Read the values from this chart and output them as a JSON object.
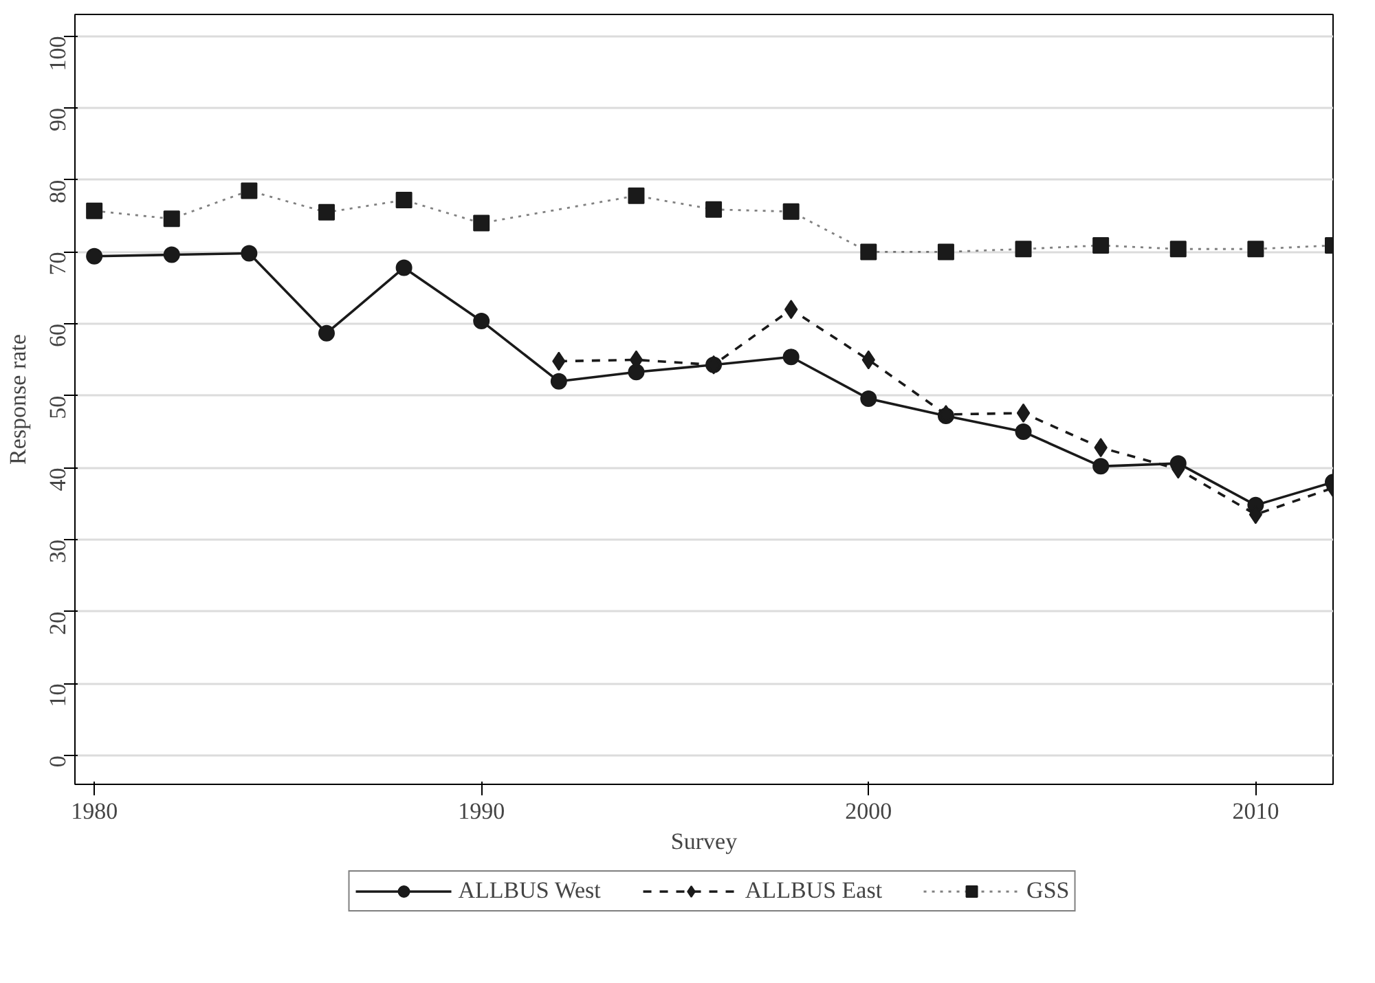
{
  "chart_data": {
    "type": "line",
    "xlabel": "Survey",
    "ylabel": "Response rate",
    "xlim": [
      1979.5,
      2012
    ],
    "xticks": [
      1980,
      1990,
      2000,
      2010
    ],
    "ylim": [
      -4,
      103
    ],
    "yticks": [
      0,
      10,
      20,
      30,
      40,
      50,
      60,
      70,
      80,
      90,
      100
    ],
    "grid": "y",
    "legend": "bottom",
    "series": [
      {
        "name": "ALLBUS West",
        "color": "#1a1a1a",
        "marker": "circle",
        "line_style": "solid",
        "x": [
          1980,
          1982,
          1984,
          1986,
          1988,
          1990,
          1992,
          1994,
          1996,
          1998,
          2000,
          2002,
          2004,
          2006,
          2008,
          2010,
          2012
        ],
        "values": [
          69.4,
          69.6,
          69.8,
          58.7,
          67.8,
          60.4,
          52,
          53.3,
          54.3,
          55.4,
          49.6,
          47.2,
          45,
          40.2,
          40.6,
          34.8,
          38
        ]
      },
      {
        "name": "ALLBUS East",
        "color": "#1a1a1a",
        "marker": "diamond",
        "line_style": "dashed",
        "x": [
          1992,
          1994,
          1996,
          1998,
          2000,
          2002,
          2004,
          2006,
          2008,
          2010,
          2012
        ],
        "values": [
          54.8,
          55,
          54.3,
          62,
          55,
          47.4,
          47.6,
          42.8,
          39.8,
          33.5,
          37.2
        ]
      },
      {
        "name": "GSS",
        "color": "#1a1a1a",
        "marker": "square",
        "line_style": "dotted",
        "x": [
          1980,
          1982,
          1984,
          1986,
          1988,
          1990,
          1994,
          1996,
          1998,
          2000,
          2002,
          2004,
          2006,
          2008,
          2010,
          2012
        ],
        "values": [
          75.7,
          74.6,
          78.5,
          75.5,
          77.2,
          74,
          77.8,
          75.9,
          75.6,
          70,
          70,
          70.4,
          70.9,
          70.4,
          70.4,
          70.9
        ]
      }
    ]
  }
}
